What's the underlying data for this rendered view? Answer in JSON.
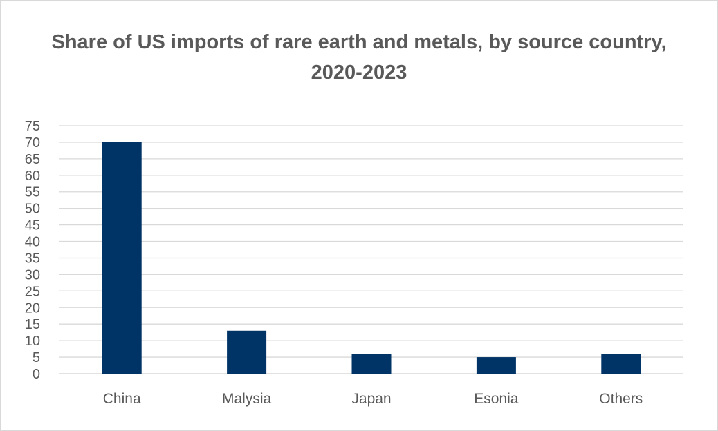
{
  "chart_data": {
    "type": "bar",
    "title": "Share of US imports of rare earth and metals, by source country, 2020-2023",
    "categories": [
      "China",
      "Malysia",
      "Japan",
      "Esonia",
      "Others"
    ],
    "values": [
      70,
      13,
      6,
      5,
      6
    ],
    "xlabel": "",
    "ylabel": "",
    "ylim": [
      0,
      75
    ],
    "ytick_step": 5,
    "grid": true,
    "legend": "none",
    "bar_color": "#003366",
    "grid_color": "#d9d9d9",
    "text_color": "#595959"
  }
}
